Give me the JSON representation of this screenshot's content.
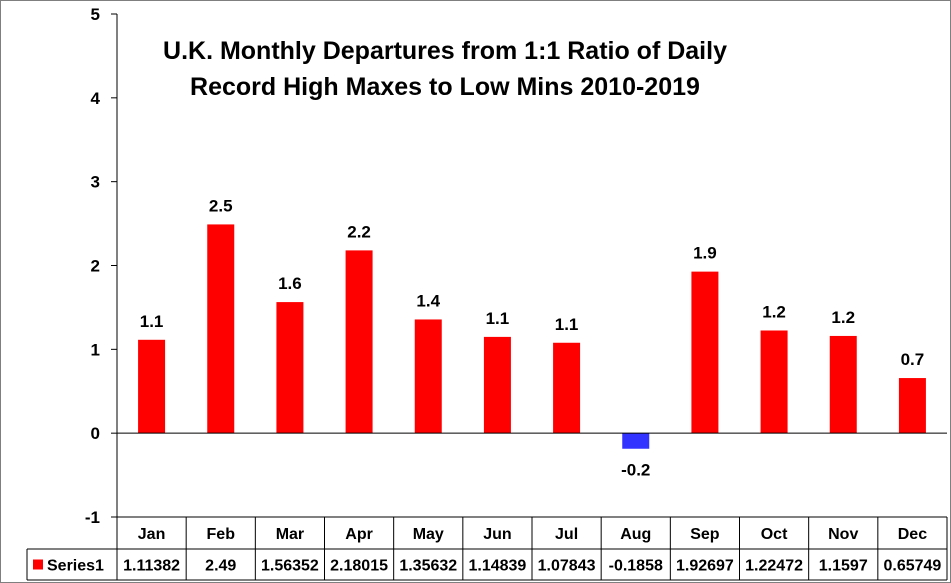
{
  "chart_data": {
    "type": "bar",
    "title": "U.K. Monthly Departures from 1:1 Ratio of Daily Record High Maxes to Low Mins 2010-2019",
    "title_lines": [
      "U.K. Monthly Departures from 1:1 Ratio of Daily",
      "Record High Maxes to Low Mins 2010-2019"
    ],
    "categories": [
      "Jan",
      "Feb",
      "Mar",
      "Apr",
      "May",
      "Jun",
      "Jul",
      "Aug",
      "Sep",
      "Oct",
      "Nov",
      "Dec"
    ],
    "series": [
      {
        "name": "Series1",
        "values": [
          1.11382,
          2.49,
          1.56352,
          2.18015,
          1.35632,
          1.14839,
          1.07843,
          -0.1858,
          1.92697,
          1.22472,
          1.1597,
          0.65749
        ],
        "data_labels": [
          "1.1",
          "2.5",
          "1.6",
          "2.2",
          "1.4",
          "1.1",
          "1.1",
          "-0.2",
          "1.9",
          "1.2",
          "1.2",
          "0.7"
        ],
        "table_values": [
          "1.11382",
          "2.49",
          "1.56352",
          "2.18015",
          "1.35632",
          "1.14839",
          "1.07843",
          "-0.1858",
          "1.92697",
          "1.22472",
          "1.1597",
          "0.65749"
        ],
        "color": "#ff0000",
        "negative_color": "#3333ff"
      }
    ],
    "xlabel": "",
    "ylabel": "",
    "ylim": [
      -1,
      5
    ],
    "yticks": [
      -1,
      0,
      1,
      2,
      3,
      4,
      5
    ],
    "grid": false,
    "legend": "data-table",
    "data_table": true
  }
}
